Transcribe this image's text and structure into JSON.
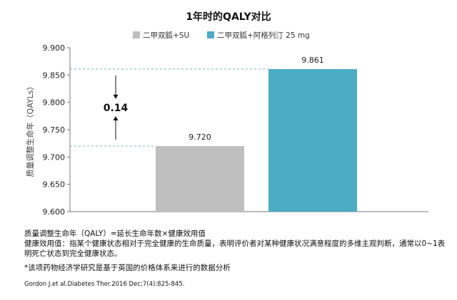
{
  "chart_data": {
    "type": "bar",
    "title": "1年时的QALY对比",
    "ylabel": "质量调整生命年（QAYLs）",
    "xlabel": "",
    "ylim": [
      9.6,
      9.9
    ],
    "yticks": [
      "9.600",
      "9.650",
      "9.700",
      "9.750",
      "9.800",
      "9.850",
      "9.900"
    ],
    "legend_position": "top",
    "grid": false,
    "series": [
      {
        "name": "二甲双胍+SU",
        "value": 9.72,
        "label": "9.720",
        "color": "#bfbfbf"
      },
      {
        "name": "二甲双胍+阿格列汀 25 mg",
        "value": 9.861,
        "label": "9.861",
        "color": "#4bacc6"
      }
    ],
    "annotation": {
      "text": "0.14",
      "upper_value": 9.861,
      "lower_value": 9.72,
      "guide_color": "#7fb4cc"
    }
  },
  "notes": {
    "definition": "质量调整生命年（QALY）=延长生命年数×健康效用值",
    "utility": "健康效用值：指某个健康状态相对于完全健康的生命质量，表明评价者对某种健康状况满意程度的多维主观判断，通常以0~1表明死亡状态到完全健康状态。",
    "source": "*该项药物经济学研究是基于英国的价格体系来进行的数据分析",
    "citation": "Gordon J.et al.Diabetes Ther.2016 Dec;7(4):825-845."
  }
}
